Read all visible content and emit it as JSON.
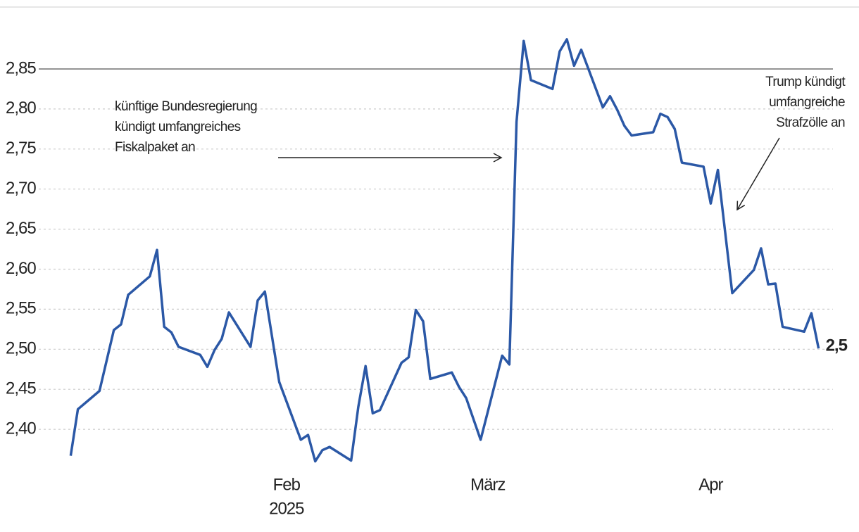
{
  "chart_data": {
    "type": "line",
    "x": [
      2,
      3,
      6,
      8,
      9,
      10,
      13,
      14,
      15,
      16,
      17,
      20,
      21,
      22,
      23,
      24,
      27,
      28,
      29,
      31,
      34,
      35,
      36,
      37,
      38,
      41,
      42,
      43,
      44,
      45,
      48,
      49,
      50,
      51,
      52,
      55,
      56,
      57,
      59,
      62,
      63,
      64,
      65,
      66,
      69,
      70,
      71,
      72,
      73,
      76,
      77,
      78,
      79,
      80,
      83,
      84,
      85,
      86,
      87,
      90,
      91,
      92,
      94,
      97,
      98,
      99,
      100,
      101,
      104,
      105,
      106
    ],
    "series": [
      {
        "color": "#2b58a6",
        "values": [
          2.367,
          2.425,
          2.448,
          2.524,
          2.531,
          2.568,
          2.591,
          2.624,
          2.528,
          2.521,
          2.503,
          2.493,
          2.478,
          2.499,
          2.513,
          2.546,
          2.503,
          2.561,
          2.572,
          2.459,
          2.387,
          2.393,
          2.36,
          2.374,
          2.378,
          2.361,
          2.428,
          2.479,
          2.42,
          2.424,
          2.483,
          2.49,
          2.549,
          2.535,
          2.463,
          2.471,
          2.453,
          2.439,
          2.387,
          2.492,
          2.481,
          2.784,
          2.885,
          2.836,
          2.825,
          2.872,
          2.887,
          2.854,
          2.874,
          2.802,
          2.816,
          2.799,
          2.779,
          2.767,
          2.771,
          2.794,
          2.79,
          2.775,
          2.733,
          2.728,
          2.682,
          2.724,
          2.57,
          2.599,
          2.626,
          2.581,
          2.582,
          2.528,
          2.522,
          2.545,
          2.501
        ],
        "last_value_label": "2,5"
      }
    ],
    "xlim": [
      0,
      108
    ],
    "xticks": [
      {
        "value": 32,
        "label": "Feb"
      },
      {
        "value": 60,
        "label": "März"
      },
      {
        "value": 91,
        "label": "Apr"
      }
    ],
    "xlabel": "2025",
    "ylim": [
      2.355,
      2.9
    ],
    "yticks": [
      {
        "value": 2.4,
        "label": "2,40"
      },
      {
        "value": 2.45,
        "label": "2,45"
      },
      {
        "value": 2.5,
        "label": "2,50"
      },
      {
        "value": 2.55,
        "label": "2,55"
      },
      {
        "value": 2.6,
        "label": "2,60"
      },
      {
        "value": 2.65,
        "label": "2,65"
      },
      {
        "value": 2.7,
        "label": "2,70"
      },
      {
        "value": 2.75,
        "label": "2,75"
      },
      {
        "value": 2.8,
        "label": "2,80"
      },
      {
        "value": 2.85,
        "label": "2,85"
      }
    ],
    "grid": true,
    "annotations": [
      {
        "lines": [
          "künftige Bundesregierung",
          "kündigt umfangreiches",
          "Fiskalpaket an"
        ]
      },
      {
        "lines": [
          "Trump kündigt",
          "umfangreiche",
          "Strafzölle an"
        ]
      }
    ]
  }
}
